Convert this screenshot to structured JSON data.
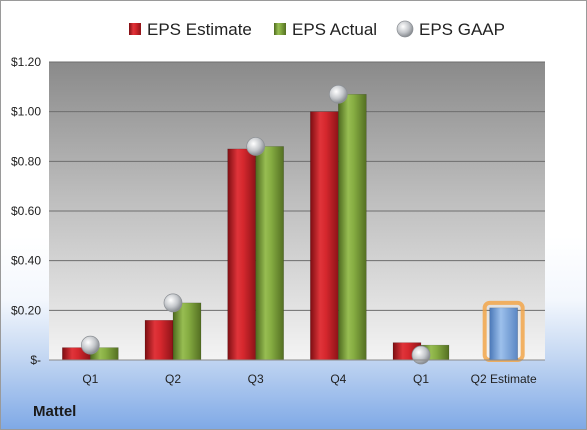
{
  "company": "Mattel",
  "chart_data": {
    "type": "bar",
    "categories": [
      "Q1",
      "Q2",
      "Q3",
      "Q4",
      "Q1",
      "Q2 Estimate"
    ],
    "series": [
      {
        "name": "EPS Estimate",
        "color": "#cc2026",
        "values": [
          0.05,
          0.16,
          0.85,
          1.0,
          0.07,
          null
        ]
      },
      {
        "name": "EPS Actual",
        "color": "#7ea33a",
        "values": [
          0.05,
          0.23,
          0.86,
          1.07,
          0.06,
          null
        ]
      },
      {
        "name": "EPS GAAP",
        "color": "#b9bdc2",
        "marker": "circle",
        "values": [
          0.06,
          0.23,
          0.86,
          1.07,
          0.02,
          null
        ]
      }
    ],
    "estimate": {
      "category": "Q2 Estimate",
      "value": 0.21,
      "color": "#6f9fd8",
      "glow": "#f2a64a"
    },
    "ylim": [
      0,
      1.2
    ],
    "yticks": [
      {
        "value": 0,
        "label": "$-"
      },
      {
        "value": 0.2,
        "label": "$0.20"
      },
      {
        "value": 0.4,
        "label": "$0.40"
      },
      {
        "value": 0.6,
        "label": "$0.60"
      },
      {
        "value": 0.8,
        "label": "$0.80"
      },
      {
        "value": 1.0,
        "label": "$1.00"
      },
      {
        "value": 1.2,
        "label": "$1.20"
      }
    ],
    "grid": true,
    "legend_position": "top"
  }
}
